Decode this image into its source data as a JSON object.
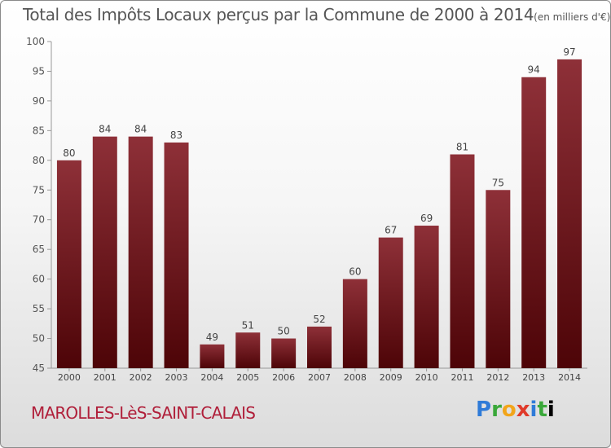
{
  "title": {
    "main": "Total des Impôts Locaux perçus par la Commune de 2000 à 2014",
    "unit": "(en milliers d'€)"
  },
  "commune": "MAROLLES-LèS-SAINT-CALAIS",
  "logo": {
    "text": "Proxiti",
    "letters": [
      "P",
      "r",
      "o",
      "x",
      "i",
      "t",
      "i"
    ]
  },
  "chart_data": {
    "type": "bar",
    "title": "Total des Impôts Locaux perçus par la Commune de 2000 à 2014",
    "unit": "(en milliers d'€)",
    "xlabel": "",
    "ylabel": "",
    "categories": [
      "2000",
      "2001",
      "2002",
      "2003",
      "2004",
      "2005",
      "2006",
      "2007",
      "2008",
      "2009",
      "2010",
      "2011",
      "2012",
      "2013",
      "2014"
    ],
    "values": [
      80,
      84,
      84,
      83,
      49,
      51,
      50,
      52,
      60,
      67,
      69,
      81,
      75,
      94,
      97
    ],
    "ylim": [
      45,
      100
    ],
    "yticks": [
      45,
      50,
      55,
      60,
      65,
      70,
      75,
      80,
      85,
      90,
      95,
      100
    ],
    "grid": false,
    "bar_color": "#7a1c22"
  }
}
